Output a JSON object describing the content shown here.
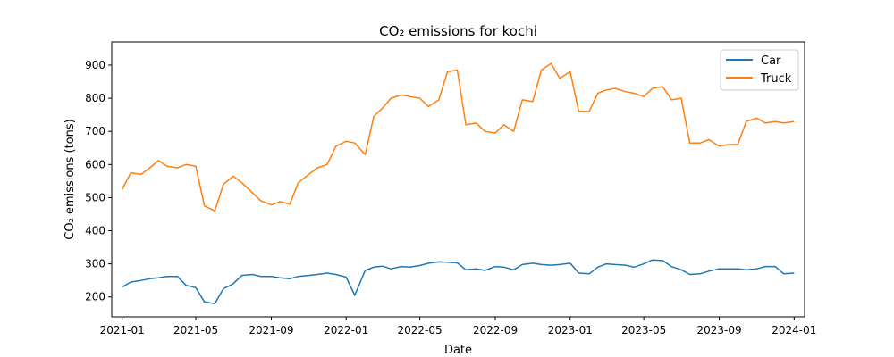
{
  "chart_data": {
    "type": "line",
    "title": "CO₂ emissions for kochi",
    "xlabel": "Date",
    "ylabel": "CO₂ emissions (tons)",
    "xlim": [
      "2020-12-15",
      "2024-01-18"
    ],
    "ylim": [
      140,
      970
    ],
    "x_ticks": [
      "2021-01-01",
      "2021-05-01",
      "2021-09-01",
      "2022-01-01",
      "2022-05-01",
      "2022-09-01",
      "2023-01-01",
      "2023-05-01",
      "2023-09-01",
      "2024-01-01"
    ],
    "x_tick_labels": [
      "2021-01",
      "2021-05",
      "2021-09",
      "2022-01",
      "2022-05",
      "2022-09",
      "2023-01",
      "2023-05",
      "2023-09",
      "2024-01"
    ],
    "y_ticks": [
      200,
      300,
      400,
      500,
      600,
      700,
      800,
      900
    ],
    "y_tick_labels": [
      "200",
      "300",
      "400",
      "500",
      "600",
      "700",
      "800",
      "900"
    ],
    "grid": false,
    "legend_position": "top-right",
    "x": [
      "2021-01-01",
      "2021-01-15",
      "2021-02-01",
      "2021-02-15",
      "2021-03-01",
      "2021-03-15",
      "2021-04-01",
      "2021-04-15",
      "2021-05-01",
      "2021-05-15",
      "2021-06-01",
      "2021-06-15",
      "2021-07-01",
      "2021-07-15",
      "2021-08-01",
      "2021-08-15",
      "2021-09-01",
      "2021-09-15",
      "2021-10-01",
      "2021-10-15",
      "2021-11-01",
      "2021-11-15",
      "2021-12-01",
      "2021-12-15",
      "2022-01-01",
      "2022-01-15",
      "2022-02-01",
      "2022-02-15",
      "2022-03-01",
      "2022-03-15",
      "2022-04-01",
      "2022-04-15",
      "2022-05-01",
      "2022-05-15",
      "2022-06-01",
      "2022-06-15",
      "2022-07-01",
      "2022-07-15",
      "2022-08-01",
      "2022-08-15",
      "2022-09-01",
      "2022-09-15",
      "2022-10-01",
      "2022-10-15",
      "2022-11-01",
      "2022-11-15",
      "2022-12-01",
      "2022-12-15",
      "2023-01-01",
      "2023-01-15",
      "2023-02-01",
      "2023-02-15",
      "2023-03-01",
      "2023-03-15",
      "2023-04-01",
      "2023-04-15",
      "2023-05-01",
      "2023-05-15",
      "2023-06-01",
      "2023-06-15",
      "2023-07-01",
      "2023-07-15",
      "2023-08-01",
      "2023-08-15",
      "2023-09-01",
      "2023-09-15",
      "2023-10-01",
      "2023-10-15",
      "2023-11-01",
      "2023-11-15",
      "2023-12-01",
      "2023-12-15",
      "2024-01-01"
    ],
    "series": [
      {
        "name": "Car",
        "color": "#1f77b4",
        "values": [
          230,
          245,
          250,
          255,
          258,
          262,
          262,
          235,
          228,
          185,
          180,
          225,
          240,
          265,
          268,
          262,
          262,
          258,
          255,
          262,
          265,
          268,
          272,
          268,
          260,
          205,
          280,
          290,
          293,
          285,
          292,
          290,
          295,
          302,
          306,
          305,
          303,
          282,
          285,
          280,
          292,
          290,
          282,
          298,
          302,
          298,
          296,
          298,
          302,
          272,
          270,
          290,
          300,
          298,
          296,
          290,
          300,
          312,
          310,
          292,
          282,
          268,
          270,
          278,
          285,
          285,
          285,
          282,
          285,
          292,
          292,
          270,
          272
        ]
      },
      {
        "name": "Truck",
        "color": "#ff7f0e",
        "values": [
          525,
          575,
          570,
          590,
          612,
          595,
          590,
          600,
          595,
          475,
          460,
          540,
          565,
          545,
          515,
          490,
          478,
          488,
          480,
          545,
          570,
          590,
          600,
          655,
          670,
          665,
          630,
          745,
          770,
          800,
          810,
          805,
          800,
          775,
          795,
          880,
          885,
          720,
          725,
          700,
          695,
          720,
          700,
          795,
          790,
          885,
          905,
          860,
          880,
          760,
          760,
          815,
          825,
          830,
          820,
          815,
          805,
          830,
          835,
          795,
          800,
          665,
          665,
          675,
          655,
          660,
          660,
          730,
          740,
          725,
          730,
          725,
          730
        ]
      }
    ]
  }
}
